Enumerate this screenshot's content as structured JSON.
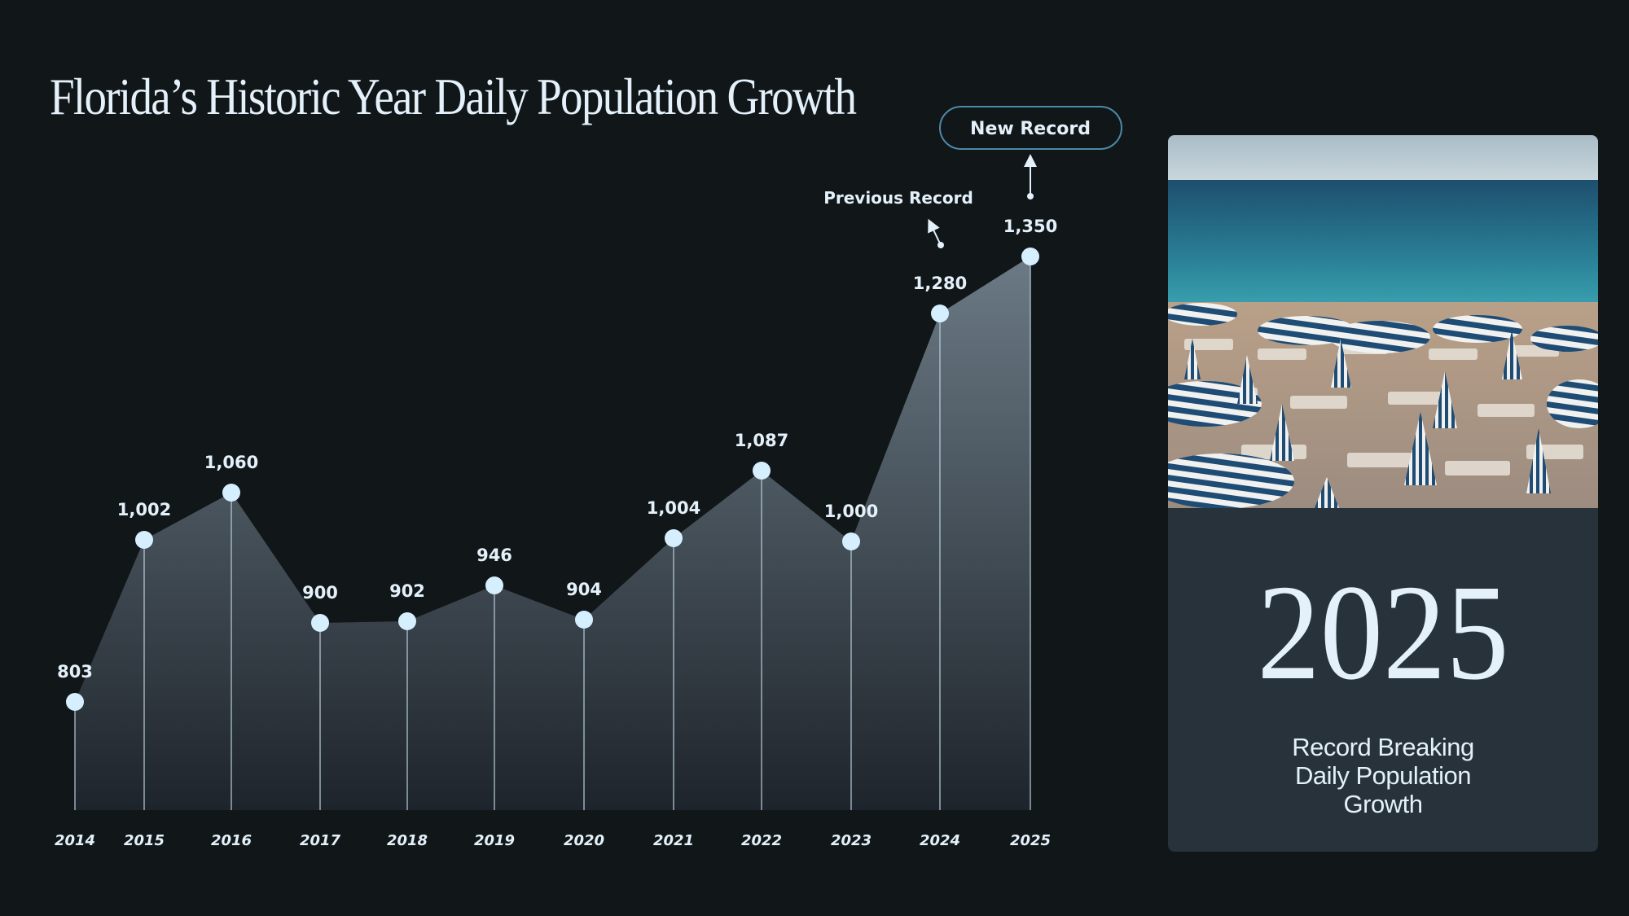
{
  "title": "Florida’s Historic Year Daily Population Growth",
  "annotations": {
    "new_record": "New Record",
    "previous_record": "Previous Record"
  },
  "side_panel": {
    "year": "2025",
    "caption_lines": [
      "Record Breaking",
      "Daily Population",
      "Growth"
    ],
    "photo": "beach-with-striped-umbrellas"
  },
  "colors": {
    "background": "#111619",
    "panel": "#27323a",
    "point": "#d6efff",
    "text": "#e4f1fa",
    "area_top": "#6b7a85",
    "area_bottom": "#1e242b"
  },
  "chart_data": {
    "type": "area",
    "title": "Florida’s Historic Year Daily Population Growth",
    "categories": [
      "2014",
      "2015",
      "2016",
      "2017",
      "2018",
      "2019",
      "2020",
      "2021",
      "2022",
      "2023",
      "2024",
      "2025"
    ],
    "values": [
      803,
      1002,
      1060,
      900,
      902,
      946,
      904,
      1004,
      1087,
      1000,
      1280,
      1350
    ],
    "value_labels": [
      "803",
      "1,002",
      "1,060",
      "900",
      "902",
      "946",
      "904",
      "1,004",
      "1,087",
      "1,000",
      "1,280",
      "1,350"
    ],
    "xlabel": "",
    "ylabel": "",
    "ylim": [
      670,
      1515
    ],
    "grid": false,
    "legend": "none"
  }
}
